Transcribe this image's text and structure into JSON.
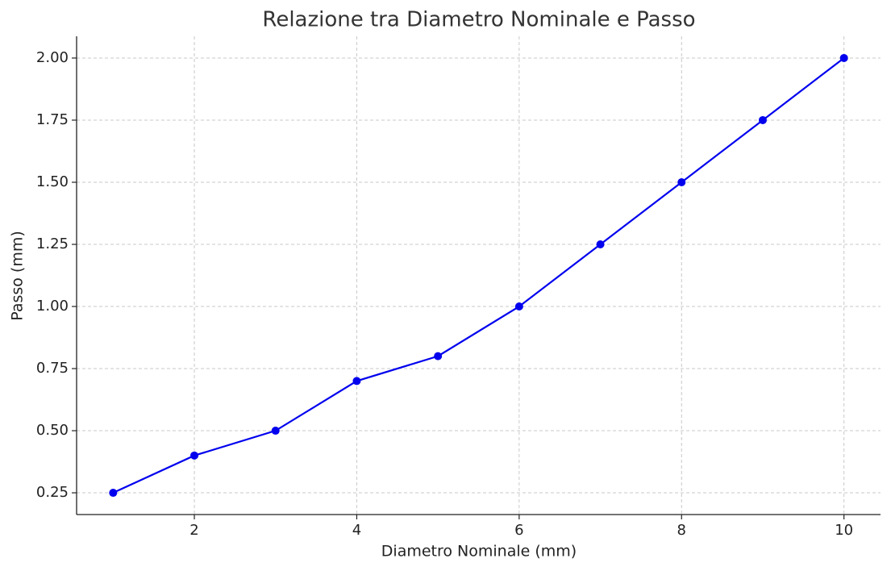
{
  "chart_data": {
    "type": "line",
    "title": "Relazione tra Diametro Nominale e Passo",
    "x_label": "Diametro Nominale (mm)",
    "y_label": "Passo (mm)",
    "x": [
      1,
      2,
      3,
      4,
      5,
      6,
      7,
      8,
      9,
      10
    ],
    "values": [
      0.25,
      0.4,
      0.5,
      0.7,
      0.8,
      1.0,
      1.25,
      1.5,
      1.75,
      2.0
    ],
    "color": "#0000ee",
    "markers": true,
    "xlim": [
      0.55,
      10.45
    ],
    "xticks": [
      2,
      4,
      6,
      8,
      10
    ],
    "ylim": [
      0.1625,
      2.0875
    ],
    "yticks": [
      0.25,
      {
        "value": 0.5,
        "label": "0.50"
      },
      0.75,
      {
        "value": 1.0,
        "label": "1.00"
      },
      1.25,
      {
        "value": 1.5,
        "label": "1.50"
      },
      1.75,
      {
        "value": 2.0,
        "label": "2.00"
      }
    ],
    "grid": true
  }
}
